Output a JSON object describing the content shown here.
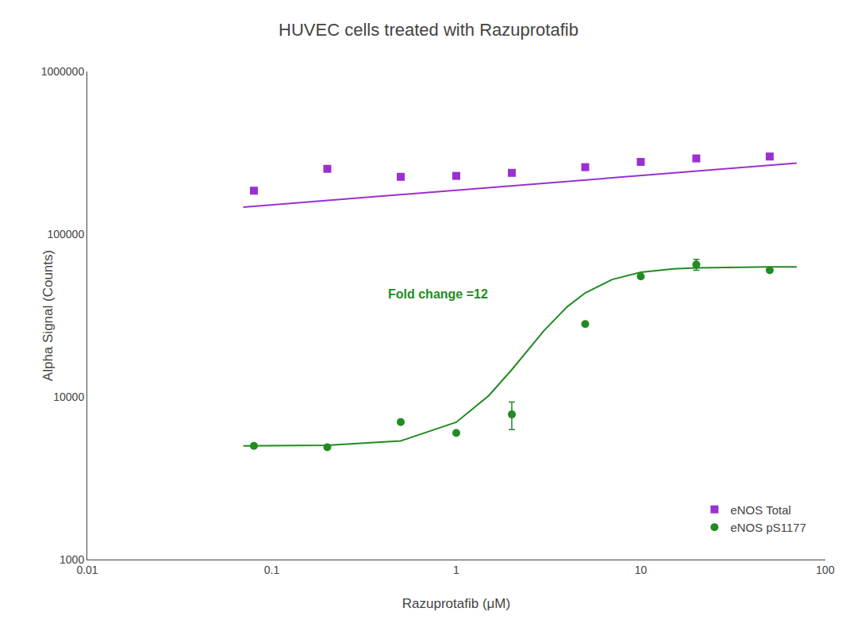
{
  "chart_data": {
    "type": "scatter",
    "title": "HUVEC cells treated with Razuprotafib",
    "x_label": "Razuprotafib (μM)",
    "y_label": "Alpha Signal (Counts)",
    "log": true,
    "grid": false,
    "legend": "lower right",
    "xlim": [
      0.01,
      100
    ],
    "ylim": [
      1000,
      1000000
    ],
    "xticks": [
      0.01,
      0.1,
      1,
      10,
      100
    ],
    "yticks": [
      1000,
      10000,
      100000,
      1000000
    ],
    "series": [
      {
        "type": "line",
        "color": "#9B30D0",
        "line_style": "solid",
        "x": [
          0.07,
          1,
          70
        ],
        "values": [
          146575,
          186209,
          272935
        ]
      },
      {
        "type": "line",
        "color": "#228B22",
        "line_style": "solid",
        "x": [
          0.07,
          0.1,
          0.2,
          0.5,
          1,
          1.5,
          2,
          3,
          4,
          5,
          7,
          10,
          15,
          20,
          30,
          50,
          70
        ],
        "values": [
          5003,
          5007,
          5037,
          5362,
          6987,
          10166,
          14695,
          25655,
          35839,
          43559,
          52643,
          58254,
          61183,
          62100,
          62670,
          62908,
          62960
        ]
      },
      {
        "type": "scatter",
        "name": "eNOS Total",
        "color": "#9B30D0",
        "marker": "square",
        "x": [
          0.08,
          0.2,
          0.5,
          1.0,
          2.0,
          5.0,
          10.0,
          20.0,
          50.0
        ],
        "values": [
          185000,
          252000,
          225000,
          228000,
          238000,
          258000,
          278000,
          292000,
          300000
        ],
        "error_low": [
          0,
          10000,
          0,
          0,
          0,
          0,
          0,
          0,
          0
        ],
        "error_high": [
          0,
          10000,
          0,
          0,
          0,
          0,
          0,
          0,
          0
        ]
      },
      {
        "type": "scatter",
        "name": "eNOS pS1177",
        "color": "#228B22",
        "marker": "circle",
        "x": [
          0.08,
          0.2,
          0.5,
          1.0,
          2.0,
          5.0,
          10.0,
          20.0,
          50.0
        ],
        "values": [
          5000,
          4900,
          7000,
          6000,
          7800,
          28000,
          55000,
          65000,
          60000
        ],
        "error_low": [
          0,
          0,
          0,
          0,
          1500,
          0,
          0,
          5000,
          0
        ],
        "error_high": [
          0,
          0,
          0,
          0,
          1500,
          0,
          0,
          5000,
          0
        ]
      }
    ],
    "annotations": [
      {
        "text": "Fold change =12",
        "x": 0.42,
        "y": 38000,
        "color": "#228B22"
      }
    ]
  }
}
